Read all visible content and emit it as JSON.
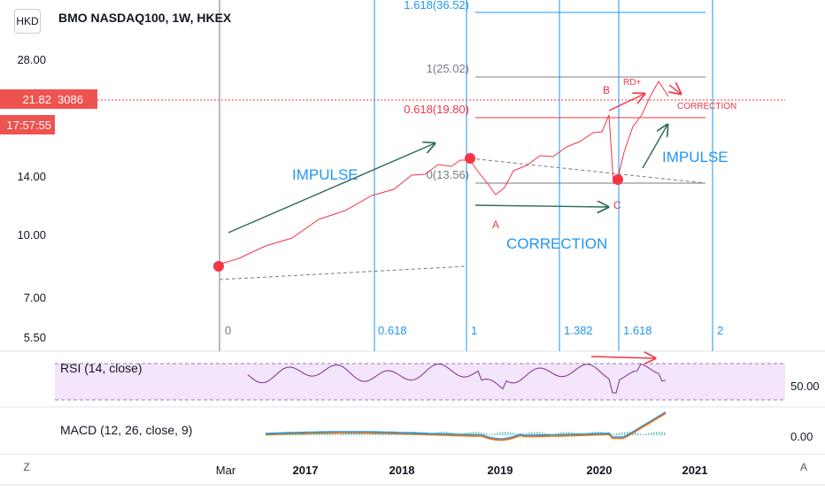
{
  "header": {
    "currency": "HKD",
    "title": "BMO NASDAQ100, 1W, HKEX",
    "last_price": "21.82",
    "last_volume": "3086",
    "countdown": "17:57:55"
  },
  "chart_data": {
    "type": "line",
    "price_axis": {
      "scale": "log",
      "ticks": [
        "28.00",
        "14.00",
        "10.00",
        "7.00",
        "5.50"
      ]
    },
    "time_axis": {
      "ticks": [
        "Mar",
        "2017",
        "2018",
        "2019",
        "2020",
        "2021"
      ]
    },
    "fib_time_labels": [
      "0",
      "0.618",
      "1",
      "1.382",
      "1.618",
      "2"
    ],
    "fib_price_labels": [
      {
        "text": "1.618(36.52)",
        "color": "#2196f3"
      },
      {
        "text": "1(25.02)",
        "color": "#787b86"
      },
      {
        "text": "0.618(19.80)",
        "color": "#f23645"
      },
      {
        "text": "0(13.56)",
        "color": "#787b86"
      }
    ],
    "annotations": {
      "impulse_1": "IMPULSE",
      "impulse_2": "IMPULSE",
      "correction": "CORRECTION",
      "correction_small": "CORRECTION",
      "wave_a": "A",
      "wave_b": "B",
      "wave_c": "C",
      "rd_plus": "RD+"
    },
    "indicators": {
      "rsi": {
        "label": "RSI (14, close)",
        "axis_tick": "50.00"
      },
      "macd": {
        "label": "MACD (12, 26, close, 9)",
        "axis_tick": "0.00"
      }
    },
    "colors": {
      "price_line": "#f23645",
      "fib_blue": "#2196f3",
      "fib_red": "#f23645",
      "fib_grey": "#787b86",
      "trend_arrow": "#2e6b57",
      "wave_text": "#2196f3",
      "rsi_line": "#7e2c8e",
      "rsi_fill": "#f3e5fb",
      "macd_line": "#2196f3",
      "signal_line": "#ff6d00"
    }
  },
  "side_buttons": {
    "left": "Z",
    "right": "A"
  }
}
